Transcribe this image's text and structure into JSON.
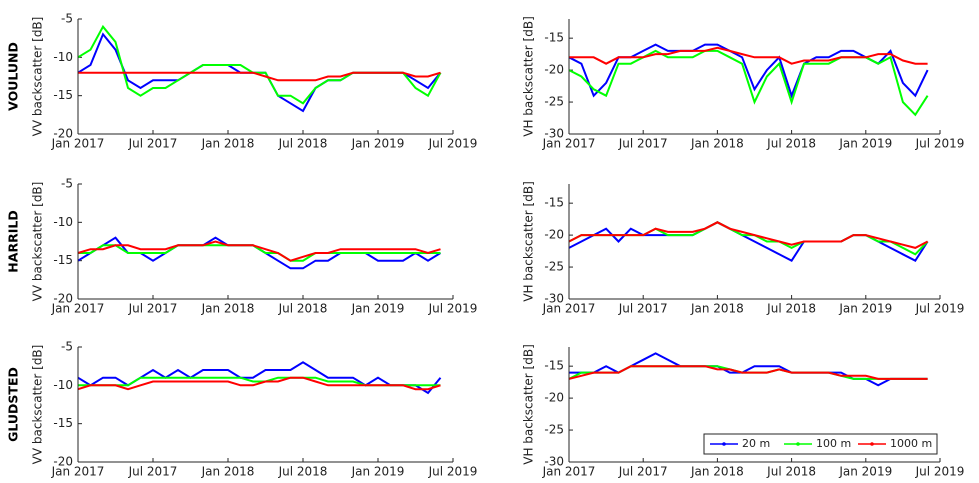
{
  "chart_data": [
    {
      "type": "line",
      "row_label": "VOULUND",
      "ylabel": "VV backscatter [dB]",
      "x": [
        "2017-01",
        "2017-02",
        "2017-03",
        "2017-04",
        "2017-05",
        "2017-06",
        "2017-07",
        "2017-08",
        "2017-09",
        "2017-10",
        "2017-11",
        "2017-12",
        "2018-01",
        "2018-02",
        "2018-03",
        "2018-04",
        "2018-05",
        "2018-06",
        "2018-07",
        "2018-08",
        "2018-09",
        "2018-10",
        "2018-11",
        "2018-12",
        "2019-01",
        "2019-02",
        "2019-03",
        "2019-04",
        "2019-05",
        "2019-06"
      ],
      "xlim": [
        "2017-01",
        "2019-07"
      ],
      "xticks": [
        {
          "value": "2017-01",
          "label": "Jan 2017"
        },
        {
          "value": "2017-07",
          "label": "Jul 2017"
        },
        {
          "value": "2018-01",
          "label": "Jan 2018"
        },
        {
          "value": "2018-07",
          "label": "Jul 2018"
        },
        {
          "value": "2019-01",
          "label": "Jan 2019"
        },
        {
          "value": "2019-07",
          "label": "Jul 2019"
        }
      ],
      "ylim": [
        -20,
        -5
      ],
      "yticks": [
        -5,
        -10,
        -15,
        -20
      ],
      "series": [
        {
          "color": "#0000ff",
          "values": [
            -12,
            -11,
            -7,
            -9,
            -13,
            -14,
            -13,
            -13,
            -13,
            -12,
            -11,
            -11,
            -11,
            -12,
            -12,
            -12,
            -15,
            -16,
            -17,
            -14,
            -13,
            -13,
            -12,
            -12,
            -12,
            -12,
            -12,
            -13,
            -14,
            -12
          ]
        },
        {
          "color": "#00ff00",
          "values": [
            -10,
            -9,
            -6,
            -8,
            -14,
            -15,
            -14,
            -14,
            -13,
            -12,
            -11,
            -11,
            -11,
            -11,
            -12,
            -12,
            -15,
            -15,
            -16,
            -14,
            -13,
            -13,
            -12,
            -12,
            -12,
            -12,
            -12,
            -14,
            -15,
            -12
          ]
        },
        {
          "color": "#ff0000",
          "values": [
            -12,
            -12,
            -12,
            -12,
            -12,
            -12,
            -12,
            -12,
            -12,
            -12,
            -12,
            -12,
            -12,
            -12,
            -12,
            -12.5,
            -13,
            -13,
            -13,
            -13,
            -12.5,
            -12.5,
            -12,
            -12,
            -12,
            -12,
            -12,
            -12.5,
            -12.5,
            -12
          ]
        }
      ]
    },
    {
      "type": "line",
      "ylabel": "VH backscatter [dB]",
      "x": [
        "2017-01",
        "2017-02",
        "2017-03",
        "2017-04",
        "2017-05",
        "2017-06",
        "2017-07",
        "2017-08",
        "2017-09",
        "2017-10",
        "2017-11",
        "2017-12",
        "2018-01",
        "2018-02",
        "2018-03",
        "2018-04",
        "2018-05",
        "2018-06",
        "2018-07",
        "2018-08",
        "2018-09",
        "2018-10",
        "2018-11",
        "2018-12",
        "2019-01",
        "2019-02",
        "2019-03",
        "2019-04",
        "2019-05",
        "2019-06"
      ],
      "xlim": [
        "2017-01",
        "2019-07"
      ],
      "xticks": [
        {
          "value": "2017-01",
          "label": "Jan 2017"
        },
        {
          "value": "2017-07",
          "label": "Jul 2017"
        },
        {
          "value": "2018-01",
          "label": "Jan 2018"
        },
        {
          "value": "2018-07",
          "label": "Jul 2018"
        },
        {
          "value": "2019-01",
          "label": "Jan 2019"
        },
        {
          "value": "2019-07",
          "label": "Jul 2019"
        }
      ],
      "ylim": [
        -30,
        -12
      ],
      "yticks": [
        -15,
        -20,
        -25,
        -30
      ],
      "series": [
        {
          "color": "#0000ff",
          "values": [
            -18,
            -19,
            -24,
            -22,
            -18,
            -18,
            -17,
            -16,
            -17,
            -17,
            -17,
            -16,
            -16,
            -17,
            -18,
            -23,
            -20,
            -18,
            -24,
            -19,
            -18,
            -18,
            -17,
            -17,
            -18,
            -19,
            -17,
            -22,
            -24,
            -20
          ]
        },
        {
          "color": "#00ff00",
          "values": [
            -20,
            -21,
            -23,
            -24,
            -19,
            -19,
            -18,
            -17,
            -18,
            -18,
            -18,
            -17,
            -17,
            -18,
            -19,
            -25,
            -21,
            -19,
            -25,
            -19,
            -19,
            -19,
            -18,
            -18,
            -18,
            -19,
            -18,
            -25,
            -27,
            -24
          ]
        },
        {
          "color": "#ff0000",
          "values": [
            -18,
            -18,
            -18,
            -19,
            -18,
            -18,
            -18,
            -17.5,
            -17.5,
            -17,
            -17,
            -17,
            -16.5,
            -17,
            -17.5,
            -18,
            -18,
            -18,
            -19,
            -18.5,
            -18.5,
            -18.5,
            -18,
            -18,
            -18,
            -17.5,
            -17.5,
            -18.5,
            -19,
            -19
          ]
        }
      ]
    },
    {
      "type": "line",
      "row_label": "HARRILD",
      "ylabel": "VV backscatter [dB]",
      "x": [
        "2017-01",
        "2017-02",
        "2017-03",
        "2017-04",
        "2017-05",
        "2017-06",
        "2017-07",
        "2017-08",
        "2017-09",
        "2017-10",
        "2017-11",
        "2017-12",
        "2018-01",
        "2018-02",
        "2018-03",
        "2018-04",
        "2018-05",
        "2018-06",
        "2018-07",
        "2018-08",
        "2018-09",
        "2018-10",
        "2018-11",
        "2018-12",
        "2019-01",
        "2019-02",
        "2019-03",
        "2019-04",
        "2019-05",
        "2019-06"
      ],
      "xlim": [
        "2017-01",
        "2019-07"
      ],
      "xticks": [
        {
          "value": "2017-01",
          "label": "Jan 2017"
        },
        {
          "value": "2017-07",
          "label": "Jul 2017"
        },
        {
          "value": "2018-01",
          "label": "Jan 2018"
        },
        {
          "value": "2018-07",
          "label": "Jul 2018"
        },
        {
          "value": "2019-01",
          "label": "Jan 2019"
        },
        {
          "value": "2019-07",
          "label": "Jul 2019"
        }
      ],
      "ylim": [
        -20,
        -5
      ],
      "yticks": [
        -5,
        -10,
        -15,
        -20
      ],
      "series": [
        {
          "color": "#0000ff",
          "values": [
            -15,
            -14,
            -13,
            -12,
            -14,
            -14,
            -15,
            -14,
            -13,
            -13,
            -13,
            -12,
            -13,
            -13,
            -13,
            -14,
            -15,
            -16,
            -16,
            -15,
            -15,
            -14,
            -14,
            -14,
            -15,
            -15,
            -15,
            -14,
            -15,
            -14
          ]
        },
        {
          "color": "#00ff00",
          "values": [
            -14,
            -14,
            -13,
            -13,
            -14,
            -14,
            -14,
            -14,
            -13,
            -13,
            -13,
            -13,
            -13,
            -13,
            -13,
            -14,
            -14,
            -15,
            -15,
            -14,
            -14,
            -14,
            -14,
            -14,
            -14,
            -14,
            -14,
            -14,
            -14,
            -14
          ]
        },
        {
          "color": "#ff0000",
          "values": [
            -14,
            -13.5,
            -13.5,
            -13,
            -13,
            -13.5,
            -13.5,
            -13.5,
            -13,
            -13,
            -13,
            -12.5,
            -13,
            -13,
            -13,
            -13.5,
            -14,
            -15,
            -14.5,
            -14,
            -14,
            -13.5,
            -13.5,
            -13.5,
            -13.5,
            -13.5,
            -13.5,
            -13.5,
            -14,
            -13.5
          ]
        }
      ]
    },
    {
      "type": "line",
      "ylabel": "VH backscatter [dB]",
      "x": [
        "2017-01",
        "2017-02",
        "2017-03",
        "2017-04",
        "2017-05",
        "2017-06",
        "2017-07",
        "2017-08",
        "2017-09",
        "2017-10",
        "2017-11",
        "2017-12",
        "2018-01",
        "2018-02",
        "2018-03",
        "2018-04",
        "2018-05",
        "2018-06",
        "2018-07",
        "2018-08",
        "2018-09",
        "2018-10",
        "2018-11",
        "2018-12",
        "2019-01",
        "2019-02",
        "2019-03",
        "2019-04",
        "2019-05",
        "2019-06"
      ],
      "xlim": [
        "2017-01",
        "2019-07"
      ],
      "xticks": [
        {
          "value": "2017-01",
          "label": "Jan 2017"
        },
        {
          "value": "2017-07",
          "label": "Jul 2017"
        },
        {
          "value": "2018-01",
          "label": "Jan 2018"
        },
        {
          "value": "2018-07",
          "label": "Jul 2018"
        },
        {
          "value": "2019-01",
          "label": "Jan 2019"
        },
        {
          "value": "2019-07",
          "label": "Jul 2019"
        }
      ],
      "ylim": [
        -30,
        -12
      ],
      "yticks": [
        -15,
        -20,
        -25,
        -30
      ],
      "series": [
        {
          "color": "#0000ff",
          "values": [
            -22,
            -21,
            -20,
            -19,
            -21,
            -19,
            -20,
            -20,
            -20,
            -20,
            -20,
            -19,
            -18,
            -19,
            -20,
            -21,
            -22,
            -23,
            -24,
            -21,
            -21,
            -21,
            -21,
            -20,
            -20,
            -21,
            -22,
            -23,
            -24,
            -21
          ]
        },
        {
          "color": "#00ff00",
          "values": [
            -21,
            -20,
            -20,
            -20,
            -20,
            -20,
            -20,
            -19,
            -20,
            -20,
            -20,
            -19,
            -18,
            -19,
            -20,
            -20,
            -21,
            -21,
            -22,
            -21,
            -21,
            -21,
            -21,
            -20,
            -20,
            -21,
            -21,
            -22,
            -23,
            -21
          ]
        },
        {
          "color": "#ff0000",
          "values": [
            -21,
            -20,
            -20,
            -20,
            -20,
            -20,
            -20,
            -19,
            -19.5,
            -19.5,
            -19.5,
            -19,
            -18,
            -19,
            -19.5,
            -20,
            -20.5,
            -21,
            -21.5,
            -21,
            -21,
            -21,
            -21,
            -20,
            -20,
            -20.5,
            -21,
            -21.5,
            -22,
            -21
          ]
        }
      ]
    },
    {
      "type": "line",
      "row_label": "GLUDSTED",
      "ylabel": "VV backscatter [dB]",
      "x": [
        "2017-01",
        "2017-02",
        "2017-03",
        "2017-04",
        "2017-05",
        "2017-06",
        "2017-07",
        "2017-08",
        "2017-09",
        "2017-10",
        "2017-11",
        "2017-12",
        "2018-01",
        "2018-02",
        "2018-03",
        "2018-04",
        "2018-05",
        "2018-06",
        "2018-07",
        "2018-08",
        "2018-09",
        "2018-10",
        "2018-11",
        "2018-12",
        "2019-01",
        "2019-02",
        "2019-03",
        "2019-04",
        "2019-05",
        "2019-06"
      ],
      "xlim": [
        "2017-01",
        "2019-07"
      ],
      "xticks": [
        {
          "value": "2017-01",
          "label": "Jan 2017"
        },
        {
          "value": "2017-07",
          "label": "Jul 2017"
        },
        {
          "value": "2018-01",
          "label": "Jan 2018"
        },
        {
          "value": "2018-07",
          "label": "Jul 2018"
        },
        {
          "value": "2019-01",
          "label": "Jan 2019"
        },
        {
          "value": "2019-07",
          "label": "Jul 2019"
        }
      ],
      "ylim": [
        -20,
        -5
      ],
      "yticks": [
        -5,
        -10,
        -15,
        -20
      ],
      "series": [
        {
          "color": "#0000ff",
          "values": [
            -9,
            -10,
            -9,
            -9,
            -10,
            -9,
            -8,
            -9,
            -8,
            -9,
            -8,
            -8,
            -8,
            -9,
            -9,
            -8,
            -8,
            -8,
            -7,
            -8,
            -9,
            -9,
            -9,
            -10,
            -9,
            -10,
            -10,
            -10,
            -11,
            -9
          ]
        },
        {
          "color": "#00ff00",
          "values": [
            -10,
            -10,
            -10,
            -10,
            -10,
            -9,
            -9,
            -9,
            -9,
            -9,
            -9,
            -9,
            -9,
            -9,
            -9.5,
            -9.5,
            -9,
            -9,
            -9,
            -9,
            -9.5,
            -9.5,
            -9.5,
            -10,
            -10,
            -10,
            -10,
            -10,
            -10,
            -10
          ]
        },
        {
          "color": "#ff0000",
          "values": [
            -10.5,
            -10,
            -10,
            -10,
            -10.5,
            -10,
            -9.5,
            -9.5,
            -9.5,
            -9.5,
            -9.5,
            -9.5,
            -9.5,
            -10,
            -10,
            -9.5,
            -9.5,
            -9,
            -9,
            -9.5,
            -10,
            -10,
            -10,
            -10,
            -10,
            -10,
            -10,
            -10.5,
            -10.5,
            -10
          ]
        }
      ]
    },
    {
      "type": "line",
      "ylabel": "VH backscatter [dB]",
      "legend": "lower right",
      "x": [
        "2017-01",
        "2017-02",
        "2017-03",
        "2017-04",
        "2017-05",
        "2017-06",
        "2017-07",
        "2017-08",
        "2017-09",
        "2017-10",
        "2017-11",
        "2017-12",
        "2018-01",
        "2018-02",
        "2018-03",
        "2018-04",
        "2018-05",
        "2018-06",
        "2018-07",
        "2018-08",
        "2018-09",
        "2018-10",
        "2018-11",
        "2018-12",
        "2019-01",
        "2019-02",
        "2019-03",
        "2019-04",
        "2019-05",
        "2019-06"
      ],
      "xlim": [
        "2017-01",
        "2019-07"
      ],
      "xticks": [
        {
          "value": "2017-01",
          "label": "Jan 2017"
        },
        {
          "value": "2017-07",
          "label": "Jul 2017"
        },
        {
          "value": "2018-01",
          "label": "Jan 2018"
        },
        {
          "value": "2018-07",
          "label": "Jul 2018"
        },
        {
          "value": "2019-01",
          "label": "Jan 2019"
        },
        {
          "value": "2019-07",
          "label": "Jul 2019"
        }
      ],
      "ylim": [
        -30,
        -12
      ],
      "yticks": [
        -15,
        -20,
        -25,
        -30
      ],
      "series": [
        {
          "name": "20 m",
          "color": "#0000ff",
          "values": [
            -16,
            -16,
            -16,
            -15,
            -16,
            -15,
            -14,
            -13,
            -14,
            -15,
            -15,
            -15,
            -15,
            -16,
            -16,
            -15,
            -15,
            -15,
            -16,
            -16,
            -16,
            -16,
            -16,
            -17,
            -17,
            -18,
            -17,
            -17,
            -17,
            -17
          ]
        },
        {
          "name": "100 m",
          "color": "#00ff00",
          "values": [
            -17,
            -16,
            -16,
            -16,
            -16,
            -15,
            -15,
            -15,
            -15,
            -15,
            -15,
            -15,
            -15,
            -15.5,
            -16,
            -16,
            -16,
            -15.5,
            -16,
            -16,
            -16,
            -16,
            -16.5,
            -17,
            -17,
            -17,
            -17,
            -17,
            -17,
            -17
          ]
        },
        {
          "name": "1000 m",
          "color": "#ff0000",
          "values": [
            -17,
            -16.5,
            -16,
            -16,
            -16,
            -15,
            -15,
            -15,
            -15,
            -15,
            -15,
            -15,
            -15.5,
            -15.5,
            -16,
            -16,
            -16,
            -15.5,
            -16,
            -16,
            -16,
            -16,
            -16.5,
            -16.5,
            -16.5,
            -17,
            -17,
            -17,
            -17,
            -17
          ]
        }
      ]
    }
  ]
}
